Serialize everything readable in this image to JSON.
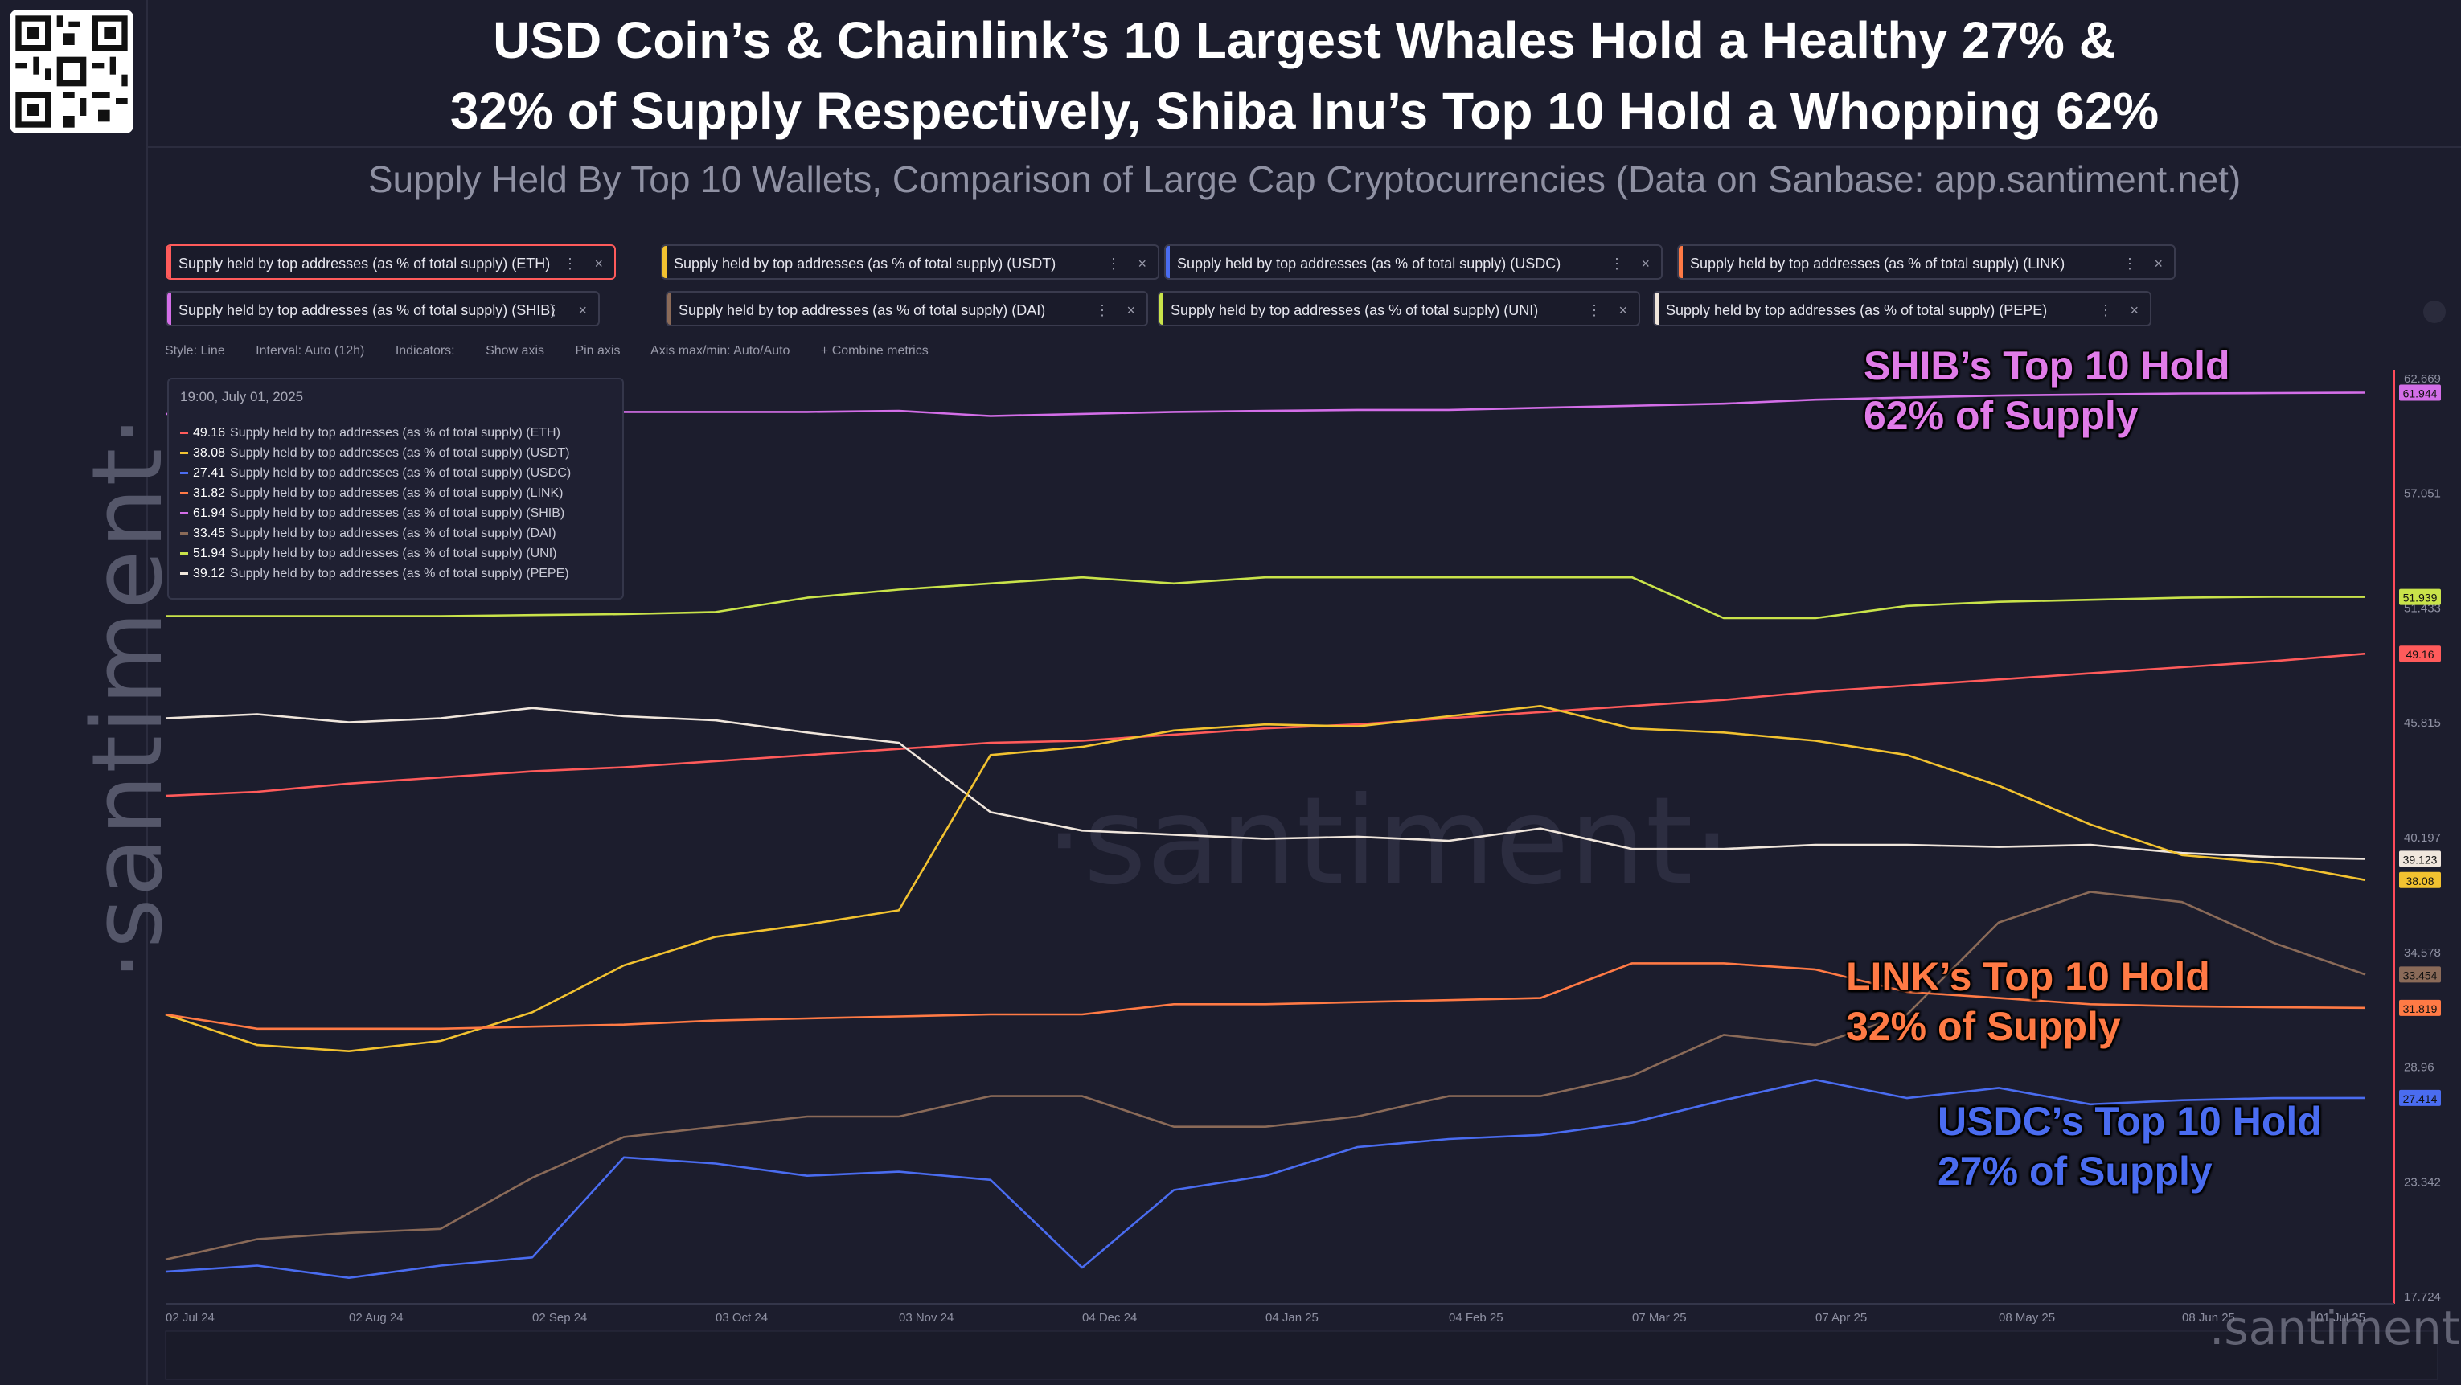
{
  "title": {
    "line1": "USD Coin’s & Chainlink’s 10 Largest Whales Hold a Healthy 27% &",
    "line2": "32% of Supply Respectively, Shiba Inu’s Top 10 Hold a Whopping 62%"
  },
  "subtitle": "Supply Held By Top 10 Wallets, Comparison of Large Cap Cryptocurrencies (Data on Sanbase: app.santiment.net)",
  "brand": {
    "vertical": "·santiment·",
    "watermark": "·santiment·",
    "corner_watermark": ".santiment."
  },
  "metric_chips": [
    {
      "label": "Supply held by top addresses (as % of total supply) (ETH)",
      "color": "#ff5b5b",
      "active": true
    },
    {
      "label": "Supply held by top addresses (as % of total supply) (USDT)",
      "color": "#f2c230"
    },
    {
      "label": "Supply held by top addresses (as % of total supply) (USDC)",
      "color": "#4a6cf0"
    },
    {
      "label": "Supply held by top addresses (as % of total supply) (LINK)",
      "color": "#ff7a45"
    },
    {
      "label": "Supply held by top addresses (as % of total supply) (SHIB)",
      "color": "#d36ee8"
    },
    {
      "label": "Supply held by top addresses (as % of total supply) (DAI)",
      "color": "#8a6a58"
    },
    {
      "label": "Supply held by top addresses (as % of total supply) (UNI)",
      "color": "#c9e34a"
    },
    {
      "label": "Supply held by top addresses (as % of total supply) (PEPE)",
      "color": "#f0e6dc"
    }
  ],
  "chip_controls": {
    "menu": "⋮",
    "close": "×"
  },
  "toolbar": {
    "style": "Style: Line",
    "interval": "Interval: Auto (12h)",
    "indicators": "Indicators:",
    "show_axis": "Show axis",
    "pin_axis": "Pin axis",
    "axis_maxmin": "Axis max/min: Auto/Auto",
    "combine": "+ Combine metrics"
  },
  "tooltip": {
    "date": "19:00, July 01, 2025",
    "rows": [
      {
        "value": "49.16",
        "label": "Supply held by top addresses (as % of total supply) (ETH)",
        "color": "#ff5b5b"
      },
      {
        "value": "38.08",
        "label": "Supply held by top addresses (as % of total supply) (USDT)",
        "color": "#f2c230"
      },
      {
        "value": "27.41",
        "label": "Supply held by top addresses (as % of total supply) (USDC)",
        "color": "#4a6cf0"
      },
      {
        "value": "31.82",
        "label": "Supply held by top addresses (as % of total supply) (LINK)",
        "color": "#ff7a45"
      },
      {
        "value": "61.94",
        "label": "Supply held by top addresses (as % of total supply) (SHIB)",
        "color": "#d36ee8"
      },
      {
        "value": "33.45",
        "label": "Supply held by top addresses (as % of total supply) (DAI)",
        "color": "#8a6a58"
      },
      {
        "value": "51.94",
        "label": "Supply held by top addresses (as % of total supply) (UNI)",
        "color": "#c9e34a"
      },
      {
        "value": "39.12",
        "label": "Supply held by top addresses (as % of total supply) (PEPE)",
        "color": "#f0e6dc"
      }
    ]
  },
  "annotations": {
    "shib": [
      "SHIB’s Top 10 Hold",
      "62% of Supply"
    ],
    "link": [
      "LINK’s Top 10 Hold",
      "32% of Supply"
    ],
    "usdc": [
      "USDC’s Top 10 Hold",
      "27% of Supply"
    ]
  },
  "colors": {
    "background": "#1c1d2d",
    "shib_annotation": "#e07be8",
    "link_annotation": "#ff7a45",
    "usdc_annotation": "#4a6cf0"
  },
  "chart_data": {
    "type": "line",
    "ylim": [
      17.724,
      62.669
    ],
    "y_ticks": [
      "62.669",
      "57.051",
      "51.433",
      "45.815",
      "40.197",
      "34.578",
      "28.96",
      "23.342",
      "17.724"
    ],
    "x_ticks": [
      "02 Jul 24",
      "02 Aug 24",
      "02 Sep 24",
      "03 Oct 24",
      "03 Nov 24",
      "04 Dec 24",
      "04 Jan 25",
      "04 Feb 25",
      "07 Mar 25",
      "07 Apr 25",
      "08 May 25",
      "08 Jun 25",
      "01 Jul 25"
    ],
    "x": [
      "02 Jul 24",
      "17 Jul 24",
      "02 Aug 24",
      "17 Aug 24",
      "02 Sep 24",
      "17 Sep 24",
      "03 Oct 24",
      "18 Oct 24",
      "03 Nov 24",
      "18 Nov 24",
      "04 Dec 24",
      "19 Dec 24",
      "04 Jan 25",
      "19 Jan 25",
      "04 Feb 25",
      "19 Feb 25",
      "07 Mar 25",
      "22 Mar 25",
      "07 Apr 25",
      "22 Apr 25",
      "08 May 25",
      "23 May 25",
      "08 Jun 25",
      "23 Jun 25",
      "01 Jul 25"
    ],
    "series": [
      {
        "name": "Supply held by top addresses (as % of total supply) (SHIB)",
        "color": "#d36ee8",
        "end_label": "61.944",
        "values": [
          60.9,
          60.9,
          60.9,
          60.95,
          60.95,
          61.0,
          61.0,
          61.0,
          61.05,
          60.8,
          60.9,
          61.0,
          61.05,
          61.1,
          61.1,
          61.2,
          61.3,
          61.4,
          61.6,
          61.7,
          61.8,
          61.85,
          61.9,
          61.92,
          61.94
        ]
      },
      {
        "name": "Supply held by top addresses (as % of total supply) (UNI)",
        "color": "#c9e34a",
        "end_label": "51.939",
        "values": [
          51.0,
          51.0,
          51.0,
          51.0,
          51.05,
          51.1,
          51.2,
          51.9,
          52.3,
          52.6,
          52.9,
          52.6,
          52.9,
          52.9,
          52.9,
          52.9,
          52.9,
          50.9,
          50.9,
          51.5,
          51.7,
          51.8,
          51.9,
          51.95,
          51.94
        ]
      },
      {
        "name": "Supply held by top addresses (as % of total supply) (ETH)",
        "color": "#ff5b5b",
        "end_label": "49.16",
        "values": [
          42.2,
          42.4,
          42.8,
          43.1,
          43.4,
          43.6,
          43.9,
          44.2,
          44.5,
          44.8,
          44.9,
          45.2,
          45.5,
          45.7,
          46.0,
          46.3,
          46.6,
          46.9,
          47.3,
          47.6,
          47.9,
          48.2,
          48.5,
          48.8,
          49.16
        ]
      },
      {
        "name": "Supply held by top addresses (as % of total supply) (PEPE)",
        "color": "#f0e6dc",
        "end_label": "39.123",
        "values": [
          46.0,
          46.2,
          45.8,
          46.0,
          46.5,
          46.1,
          45.9,
          45.3,
          44.8,
          41.4,
          40.5,
          40.3,
          40.1,
          40.2,
          40.0,
          40.6,
          39.6,
          39.6,
          39.8,
          39.8,
          39.7,
          39.8,
          39.4,
          39.2,
          39.12
        ]
      },
      {
        "name": "Supply held by top addresses (as % of total supply) (USDT)",
        "color": "#f2c230",
        "end_label": "38.08",
        "values": [
          31.5,
          30.0,
          29.7,
          30.2,
          31.6,
          33.9,
          35.3,
          35.9,
          36.6,
          44.2,
          44.6,
          45.4,
          45.7,
          45.6,
          46.1,
          46.6,
          45.5,
          45.3,
          44.9,
          44.2,
          42.7,
          40.8,
          39.3,
          38.9,
          38.08
        ]
      },
      {
        "name": "Supply held by top addresses (as % of total supply) (DAI)",
        "color": "#8a6a58",
        "end_label": "33.454",
        "values": [
          19.5,
          20.5,
          20.8,
          21.0,
          23.5,
          25.5,
          26.0,
          26.5,
          26.5,
          27.5,
          27.5,
          26.0,
          26.0,
          26.5,
          27.5,
          27.5,
          28.5,
          30.5,
          30.0,
          31.5,
          36.0,
          37.5,
          37.0,
          35.0,
          33.45
        ]
      },
      {
        "name": "Supply held by top addresses (as % of total supply) (LINK)",
        "color": "#ff7a45",
        "end_label": "31.819",
        "values": [
          31.5,
          30.8,
          30.8,
          30.8,
          30.9,
          31.0,
          31.2,
          31.3,
          31.4,
          31.5,
          31.5,
          32.0,
          32.0,
          32.1,
          32.2,
          32.3,
          34.0,
          34.0,
          33.7,
          32.6,
          32.3,
          32.0,
          31.9,
          31.85,
          31.82
        ]
      },
      {
        "name": "Supply held by top addresses (as % of total supply) (USDC)",
        "color": "#4a6cf0",
        "end_label": "27.414",
        "values": [
          18.9,
          19.2,
          18.6,
          19.2,
          19.6,
          24.5,
          24.2,
          23.6,
          23.8,
          23.4,
          19.1,
          22.9,
          23.6,
          25.0,
          25.4,
          25.6,
          26.2,
          27.3,
          28.3,
          27.4,
          27.9,
          27.1,
          27.3,
          27.4,
          27.41
        ]
      }
    ]
  }
}
